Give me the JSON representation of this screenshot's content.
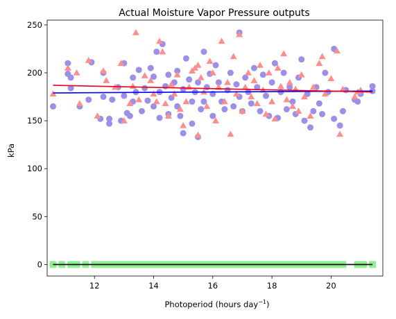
{
  "chart_data": {
    "type": "scatter",
    "title": "Actual Moisture Vapor Pressure outputs",
    "xlabel": "Photoperiod (hours day",
    "xlabel_superscript": "−1",
    "xlabel_suffix": ")",
    "ylabel": "kPa",
    "xlim": [
      10.4,
      21.75
    ],
    "ylim": [
      -12,
      255
    ],
    "x_ticks": [
      12,
      14,
      16,
      18,
      20
    ],
    "x_tick_labels": [
      "12",
      "14",
      "16",
      "18",
      "20"
    ],
    "y_ticks": [
      0,
      50,
      100,
      150,
      200,
      250
    ],
    "y_tick_labels": [
      "0",
      "50",
      "100",
      "150",
      "200",
      "250"
    ],
    "grid": false,
    "legend": "none",
    "colors": {
      "purple_points": "#9b8fe8",
      "pink_points": "#ff8f8f",
      "green_squares": "#90ee90",
      "blue_line": "#0000ff",
      "red_line": "#e8001a",
      "black_line": "#000000"
    },
    "series": [
      {
        "marker": "circle",
        "color": "#9b8fe8",
        "points": [
          [
            10.6,
            165
          ],
          [
            11.1,
            210
          ],
          [
            11.1,
            199
          ],
          [
            11.2,
            195
          ],
          [
            11.2,
            184
          ],
          [
            11.5,
            165
          ],
          [
            11.8,
            172
          ],
          [
            11.9,
            211
          ],
          [
            12.2,
            152
          ],
          [
            12.3,
            200
          ],
          [
            12.3,
            175
          ],
          [
            12.5,
            147
          ],
          [
            12.5,
            152
          ],
          [
            12.6,
            172
          ],
          [
            12.8,
            185
          ],
          [
            12.9,
            150
          ],
          [
            13.0,
            210
          ],
          [
            13.0,
            176
          ],
          [
            13.1,
            158
          ],
          [
            13.2,
            155
          ],
          [
            13.3,
            170
          ],
          [
            13.3,
            195
          ],
          [
            13.4,
            180
          ],
          [
            13.5,
            203
          ],
          [
            13.6,
            160
          ],
          [
            13.7,
            184
          ],
          [
            13.8,
            171
          ],
          [
            13.9,
            205
          ],
          [
            14.0,
            165
          ],
          [
            14.0,
            196
          ],
          [
            14.1,
            222
          ],
          [
            14.2,
            153
          ],
          [
            14.2,
            180
          ],
          [
            14.3,
            230
          ],
          [
            14.4,
            186
          ],
          [
            14.5,
            157
          ],
          [
            14.5,
            198
          ],
          [
            14.6,
            174
          ],
          [
            14.7,
            190
          ],
          [
            14.8,
            202
          ],
          [
            14.8,
            165
          ],
          [
            14.9,
            155
          ],
          [
            15.0,
            183
          ],
          [
            15.0,
            137
          ],
          [
            15.1,
            215
          ],
          [
            15.2,
            193
          ],
          [
            15.3,
            147
          ],
          [
            15.3,
            170
          ],
          [
            15.4,
            180
          ],
          [
            15.5,
            133
          ],
          [
            15.5,
            190
          ],
          [
            15.6,
            162
          ],
          [
            15.7,
            222
          ],
          [
            15.7,
            170
          ],
          [
            15.8,
            185
          ],
          [
            15.9,
            199
          ],
          [
            16.0,
            155
          ],
          [
            16.0,
            178
          ],
          [
            16.1,
            208
          ],
          [
            16.2,
            190
          ],
          [
            16.3,
            170
          ],
          [
            16.4,
            162
          ],
          [
            16.5,
            182
          ],
          [
            16.6,
            200
          ],
          [
            16.7,
            165
          ],
          [
            16.8,
            188
          ],
          [
            16.9,
            242
          ],
          [
            16.9,
            175
          ],
          [
            17.0,
            160
          ],
          [
            17.1,
            195
          ],
          [
            17.2,
            180
          ],
          [
            17.3,
            168
          ],
          [
            17.4,
            205
          ],
          [
            17.5,
            185
          ],
          [
            17.6,
            160
          ],
          [
            17.7,
            198
          ],
          [
            17.8,
            176
          ],
          [
            17.9,
            155
          ],
          [
            18.0,
            190
          ],
          [
            18.1,
            210
          ],
          [
            18.2,
            153
          ],
          [
            18.3,
            180
          ],
          [
            18.4,
            200
          ],
          [
            18.5,
            162
          ],
          [
            18.6,
            185
          ],
          [
            18.7,
            170
          ],
          [
            18.8,
            157
          ],
          [
            18.9,
            195
          ],
          [
            19.0,
            214
          ],
          [
            19.1,
            150
          ],
          [
            19.2,
            178
          ],
          [
            19.3,
            143
          ],
          [
            19.4,
            160
          ],
          [
            19.5,
            185
          ],
          [
            19.6,
            168
          ],
          [
            19.7,
            157
          ],
          [
            19.8,
            200
          ],
          [
            19.9,
            180
          ],
          [
            20.1,
            225
          ],
          [
            20.1,
            152
          ],
          [
            20.3,
            145
          ],
          [
            20.4,
            160
          ],
          [
            20.5,
            182
          ],
          [
            20.8,
            172
          ],
          [
            20.9,
            170
          ],
          [
            21.0,
            178
          ],
          [
            21.4,
            186
          ],
          [
            21.4,
            181
          ]
        ]
      },
      {
        "marker": "triangle",
        "color": "#ff8f8f",
        "points": [
          [
            10.6,
            178
          ],
          [
            11.1,
            205
          ],
          [
            11.4,
            200
          ],
          [
            11.5,
            168
          ],
          [
            11.8,
            213
          ],
          [
            12.1,
            155
          ],
          [
            12.3,
            202
          ],
          [
            12.4,
            192
          ],
          [
            12.7,
            185
          ],
          [
            12.9,
            210
          ],
          [
            13.0,
            150
          ],
          [
            13.2,
            168
          ],
          [
            13.3,
            186
          ],
          [
            13.4,
            242
          ],
          [
            13.5,
            172
          ],
          [
            13.7,
            197
          ],
          [
            13.9,
            192
          ],
          [
            14.0,
            178
          ],
          [
            14.1,
            170
          ],
          [
            14.2,
            233
          ],
          [
            14.3,
            222
          ],
          [
            14.4,
            168
          ],
          [
            14.5,
            155
          ],
          [
            14.6,
            188
          ],
          [
            14.7,
            178
          ],
          [
            14.8,
            198
          ],
          [
            14.9,
            162
          ],
          [
            15.0,
            145
          ],
          [
            15.1,
            170
          ],
          [
            15.2,
            185
          ],
          [
            15.3,
            202
          ],
          [
            15.4,
            205
          ],
          [
            15.5,
            135
          ],
          [
            15.5,
            208
          ],
          [
            15.6,
            195
          ],
          [
            15.7,
            180
          ],
          [
            15.8,
            165
          ],
          [
            15.9,
            212
          ],
          [
            16.0,
            200
          ],
          [
            16.1,
            150
          ],
          [
            16.2,
            185
          ],
          [
            16.3,
            233
          ],
          [
            16.4,
            170
          ],
          [
            16.5,
            190
          ],
          [
            16.6,
            136
          ],
          [
            16.7,
            217
          ],
          [
            16.8,
            178
          ],
          [
            16.9,
            240
          ],
          [
            17.0,
            160
          ],
          [
            17.1,
            185
          ],
          [
            17.2,
            200
          ],
          [
            17.3,
            175
          ],
          [
            17.4,
            192
          ],
          [
            17.5,
            168
          ],
          [
            17.6,
            208
          ],
          [
            17.7,
            182
          ],
          [
            17.8,
            157
          ],
          [
            17.9,
            200
          ],
          [
            18.0,
            170
          ],
          [
            18.1,
            152
          ],
          [
            18.2,
            205
          ],
          [
            18.3,
            186
          ],
          [
            18.4,
            220
          ],
          [
            18.5,
            172
          ],
          [
            18.6,
            190
          ],
          [
            18.7,
            165
          ],
          [
            18.8,
            183
          ],
          [
            18.9,
            160
          ],
          [
            19.0,
            198
          ],
          [
            19.1,
            175
          ],
          [
            19.3,
            155
          ],
          [
            19.4,
            185
          ],
          [
            19.6,
            210
          ],
          [
            19.7,
            217
          ],
          [
            19.8,
            178
          ],
          [
            20.0,
            194
          ],
          [
            20.2,
            223
          ],
          [
            20.3,
            136
          ],
          [
            20.4,
            183
          ],
          [
            20.8,
            175
          ],
          [
            20.9,
            180
          ],
          [
            21.0,
            182
          ]
        ]
      },
      {
        "marker": "square",
        "color": "#90ee90",
        "points": [
          [
            10.6,
            0
          ],
          [
            10.9,
            0
          ],
          [
            11.2,
            0
          ],
          [
            11.4,
            0
          ],
          [
            11.7,
            0
          ],
          [
            12.0,
            0
          ],
          [
            12.2,
            0
          ],
          [
            12.4,
            0
          ],
          [
            12.6,
            0
          ],
          [
            12.8,
            0
          ],
          [
            13.0,
            0
          ],
          [
            13.2,
            0
          ],
          [
            13.4,
            0
          ],
          [
            13.6,
            0
          ],
          [
            13.8,
            0
          ],
          [
            14.0,
            0
          ],
          [
            14.2,
            0
          ],
          [
            14.4,
            0
          ],
          [
            14.6,
            0
          ],
          [
            14.8,
            0
          ],
          [
            15.0,
            0
          ],
          [
            15.2,
            0
          ],
          [
            15.4,
            0
          ],
          [
            15.6,
            0
          ],
          [
            15.8,
            0
          ],
          [
            16.0,
            0
          ],
          [
            16.2,
            0
          ],
          [
            16.4,
            0
          ],
          [
            16.6,
            0
          ],
          [
            16.8,
            0
          ],
          [
            17.0,
            0
          ],
          [
            17.2,
            0
          ],
          [
            17.4,
            0
          ],
          [
            17.6,
            0
          ],
          [
            17.8,
            0
          ],
          [
            18.0,
            0
          ],
          [
            18.2,
            0
          ],
          [
            18.4,
            0
          ],
          [
            18.6,
            0
          ],
          [
            18.8,
            0
          ],
          [
            19.0,
            0
          ],
          [
            19.2,
            0
          ],
          [
            19.4,
            0
          ],
          [
            19.6,
            0
          ],
          [
            19.8,
            0
          ],
          [
            20.0,
            0
          ],
          [
            20.2,
            0
          ],
          [
            20.4,
            0
          ],
          [
            20.9,
            0
          ],
          [
            21.1,
            0
          ],
          [
            21.4,
            0
          ]
        ]
      }
    ],
    "lines": [
      {
        "color": "#0000ff",
        "points": [
          [
            10.6,
            179
          ],
          [
            21.4,
            181
          ]
        ]
      },
      {
        "color": "#e8001a",
        "points": [
          [
            10.6,
            187
          ],
          [
            21.4,
            180
          ]
        ]
      },
      {
        "color": "#000000",
        "points": [
          [
            10.6,
            0
          ],
          [
            21.4,
            0
          ]
        ]
      }
    ]
  }
}
